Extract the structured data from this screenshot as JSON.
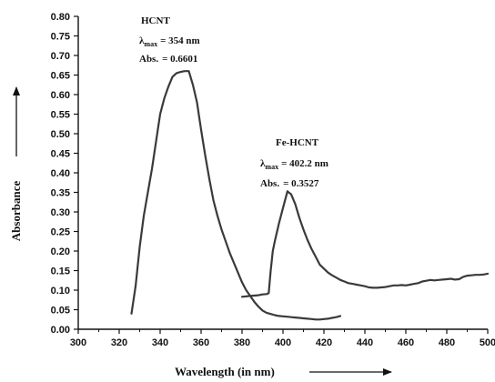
{
  "chart_data": {
    "type": "line",
    "xlabel": "Wavelength (in nm)",
    "ylabel": "Absorbance",
    "xlim": [
      300,
      500
    ],
    "ylim": [
      0,
      0.8
    ],
    "x_ticks": [
      "300",
      "320",
      "340",
      "360",
      "380",
      "400",
      "420",
      "440",
      "460",
      "480",
      "500"
    ],
    "y_ticks": [
      "0.00",
      "0.05",
      "0.10",
      "0.15",
      "0.20",
      "0.25",
      "0.30",
      "0.35",
      "0.40",
      "0.45",
      "0.50",
      "0.55",
      "0.60",
      "0.65",
      "0.70",
      "0.75",
      "0.80"
    ],
    "grid": false,
    "series": [
      {
        "color": "#3a3a3a",
        "points": [
          [
            326,
            0.04
          ],
          [
            328,
            0.11
          ],
          [
            330,
            0.21
          ],
          [
            332,
            0.29
          ],
          [
            334,
            0.35
          ],
          [
            336,
            0.41
          ],
          [
            338,
            0.48
          ],
          [
            340,
            0.55
          ],
          [
            342,
            0.59
          ],
          [
            344,
            0.62
          ],
          [
            346,
            0.645
          ],
          [
            348,
            0.655
          ],
          [
            350,
            0.658
          ],
          [
            352,
            0.66
          ],
          [
            354,
            0.6601
          ],
          [
            356,
            0.625
          ],
          [
            358,
            0.58
          ],
          [
            360,
            0.51
          ],
          [
            362,
            0.445
          ],
          [
            364,
            0.385
          ],
          [
            366,
            0.33
          ],
          [
            368,
            0.29
          ],
          [
            370,
            0.255
          ],
          [
            372,
            0.225
          ],
          [
            374,
            0.195
          ],
          [
            376,
            0.17
          ],
          [
            378,
            0.145
          ],
          [
            380,
            0.12
          ],
          [
            382,
            0.1
          ],
          [
            384,
            0.085
          ],
          [
            386,
            0.07
          ],
          [
            388,
            0.058
          ],
          [
            390,
            0.048
          ],
          [
            392,
            0.042
          ],
          [
            394,
            0.039
          ],
          [
            396,
            0.036
          ],
          [
            398,
            0.034
          ],
          [
            400,
            0.033
          ],
          [
            402,
            0.032
          ],
          [
            404,
            0.031
          ],
          [
            406,
            0.03
          ],
          [
            408,
            0.029
          ],
          [
            410,
            0.028
          ],
          [
            412,
            0.027
          ],
          [
            414,
            0.026
          ],
          [
            416,
            0.025
          ],
          [
            418,
            0.025
          ],
          [
            420,
            0.026
          ],
          [
            422,
            0.027
          ],
          [
            424,
            0.029
          ],
          [
            426,
            0.031
          ],
          [
            428,
            0.034
          ]
        ]
      },
      {
        "color": "#3a3a3a",
        "points": [
          [
            380,
            0.083
          ],
          [
            384,
            0.085
          ],
          [
            388,
            0.087
          ],
          [
            390,
            0.089
          ],
          [
            392,
            0.09
          ],
          [
            393,
            0.092
          ],
          [
            394,
            0.15
          ],
          [
            395,
            0.2
          ],
          [
            396,
            0.225
          ],
          [
            398,
            0.27
          ],
          [
            400,
            0.31
          ],
          [
            402.2,
            0.3527
          ],
          [
            404,
            0.345
          ],
          [
            406,
            0.32
          ],
          [
            408,
            0.285
          ],
          [
            410,
            0.255
          ],
          [
            412,
            0.228
          ],
          [
            414,
            0.205
          ],
          [
            416,
            0.185
          ],
          [
            418,
            0.165
          ],
          [
            420,
            0.155
          ],
          [
            422,
            0.145
          ],
          [
            424,
            0.138
          ],
          [
            426,
            0.132
          ],
          [
            428,
            0.126
          ],
          [
            430,
            0.122
          ],
          [
            432,
            0.118
          ],
          [
            434,
            0.116
          ],
          [
            436,
            0.114
          ],
          [
            438,
            0.112
          ],
          [
            440,
            0.11
          ],
          [
            442,
            0.107
          ],
          [
            444,
            0.106
          ],
          [
            446,
            0.106
          ],
          [
            448,
            0.107
          ],
          [
            450,
            0.108
          ],
          [
            452,
            0.11
          ],
          [
            454,
            0.112
          ],
          [
            456,
            0.112
          ],
          [
            458,
            0.113
          ],
          [
            460,
            0.112
          ],
          [
            462,
            0.114
          ],
          [
            464,
            0.116
          ],
          [
            466,
            0.118
          ],
          [
            468,
            0.122
          ],
          [
            470,
            0.124
          ],
          [
            472,
            0.126
          ],
          [
            474,
            0.125
          ],
          [
            476,
            0.126
          ],
          [
            478,
            0.127
          ],
          [
            480,
            0.128
          ],
          [
            482,
            0.129
          ],
          [
            484,
            0.127
          ],
          [
            486,
            0.128
          ],
          [
            488,
            0.134
          ],
          [
            490,
            0.137
          ],
          [
            492,
            0.138
          ],
          [
            494,
            0.139
          ],
          [
            496,
            0.139
          ],
          [
            498,
            0.14
          ],
          [
            500,
            0.142
          ]
        ]
      }
    ],
    "annotations": {
      "hcnt": {
        "name": "HCNT",
        "lambda_symbol": "λ",
        "lambda_sub": "max",
        "lambda_value": "= 354 nm",
        "abs_label": "Abs.",
        "abs_value": "= 0.6601"
      },
      "fehcnt": {
        "name": "Fe-HCNT",
        "lambda_symbol": "λ",
        "lambda_sub": "max",
        "lambda_value": "= 402.2 nm",
        "abs_label": "Abs.",
        "abs_value": "= 0.3527"
      }
    }
  }
}
